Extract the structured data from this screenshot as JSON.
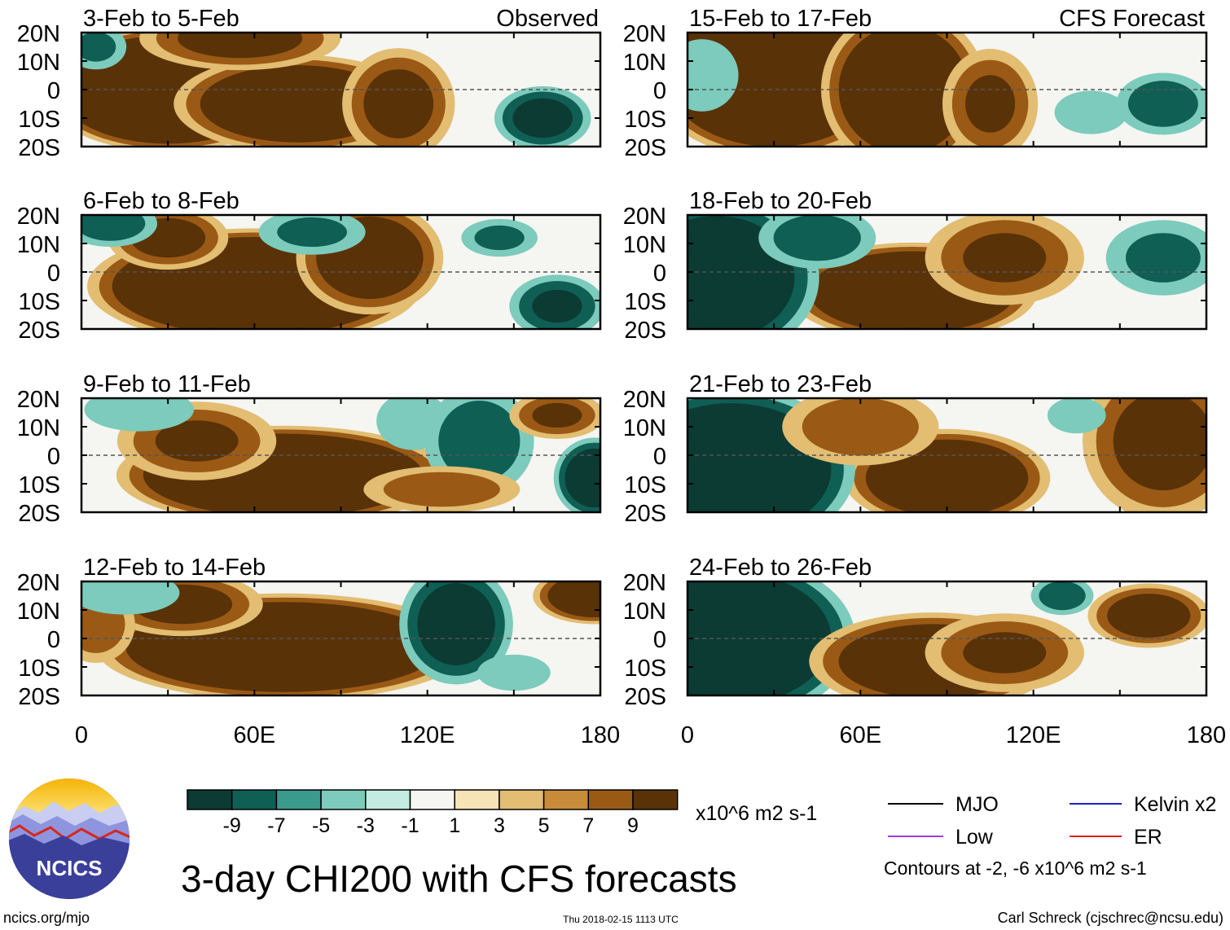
{
  "chart_data": {
    "type": "heatmap",
    "title": "3-day CHI200 with CFS forecasts",
    "variable": "CHI200",
    "x_axis": {
      "ticks": [
        "0",
        "60E",
        "120E",
        "180"
      ],
      "range": [
        0,
        180
      ]
    },
    "y_axis": {
      "ticks": [
        "20N",
        "10N",
        "0",
        "10S",
        "20S"
      ],
      "range": [
        -20,
        20
      ]
    },
    "left_column_label": "Observed",
    "right_column_label": "CFS Forecast",
    "panels": [
      {
        "period": "3-Feb to 5-Feb",
        "source": "Observed",
        "column": 0,
        "row": 0
      },
      {
        "period": "6-Feb to 8-Feb",
        "source": "Observed",
        "column": 0,
        "row": 1
      },
      {
        "period": "9-Feb to 11-Feb",
        "source": "Observed",
        "column": 0,
        "row": 2
      },
      {
        "period": "12-Feb to 14-Feb",
        "source": "Observed",
        "column": 0,
        "row": 3
      },
      {
        "period": "15-Feb to 17-Feb",
        "source": "CFS Forecast",
        "column": 1,
        "row": 0
      },
      {
        "period": "18-Feb to 20-Feb",
        "source": "CFS Forecast",
        "column": 1,
        "row": 1
      },
      {
        "period": "21-Feb to 23-Feb",
        "source": "CFS Forecast",
        "column": 1,
        "row": 2
      },
      {
        "period": "24-Feb to 26-Feb",
        "source": "CFS Forecast",
        "column": 1,
        "row": 3
      }
    ],
    "colorbar": {
      "tick_labels": [
        "-9",
        "-7",
        "-5",
        "-3",
        "-1",
        "1",
        "3",
        "5",
        "7",
        "9"
      ],
      "colors": [
        "#0b3b33",
        "#0f5f55",
        "#3a9a8c",
        "#7ccbbc",
        "#c3ebe2",
        "#f5f5f2",
        "#f6e3b6",
        "#e2bd72",
        "#c88b3a",
        "#9a5a15",
        "#5a3208"
      ],
      "units": "x10^6 m2 s-1"
    },
    "legend": {
      "items": [
        {
          "label": "MJO",
          "color": "#000000"
        },
        {
          "label": "Kelvin x2",
          "color": "#1a22c8"
        },
        {
          "label": "Low",
          "color": "#9a3ee0"
        },
        {
          "label": "ER",
          "color": "#e02020"
        }
      ],
      "note": "Contours at -2, -6 x10^6 m2 s-1"
    }
  },
  "footer": {
    "logo_text": "NCICS",
    "site": "ncics.org/mjo",
    "timestamp": "Thu 2018-02-15 1113 UTC",
    "credit": "Carl Schreck (cjschrec@ncsu.edu)"
  }
}
